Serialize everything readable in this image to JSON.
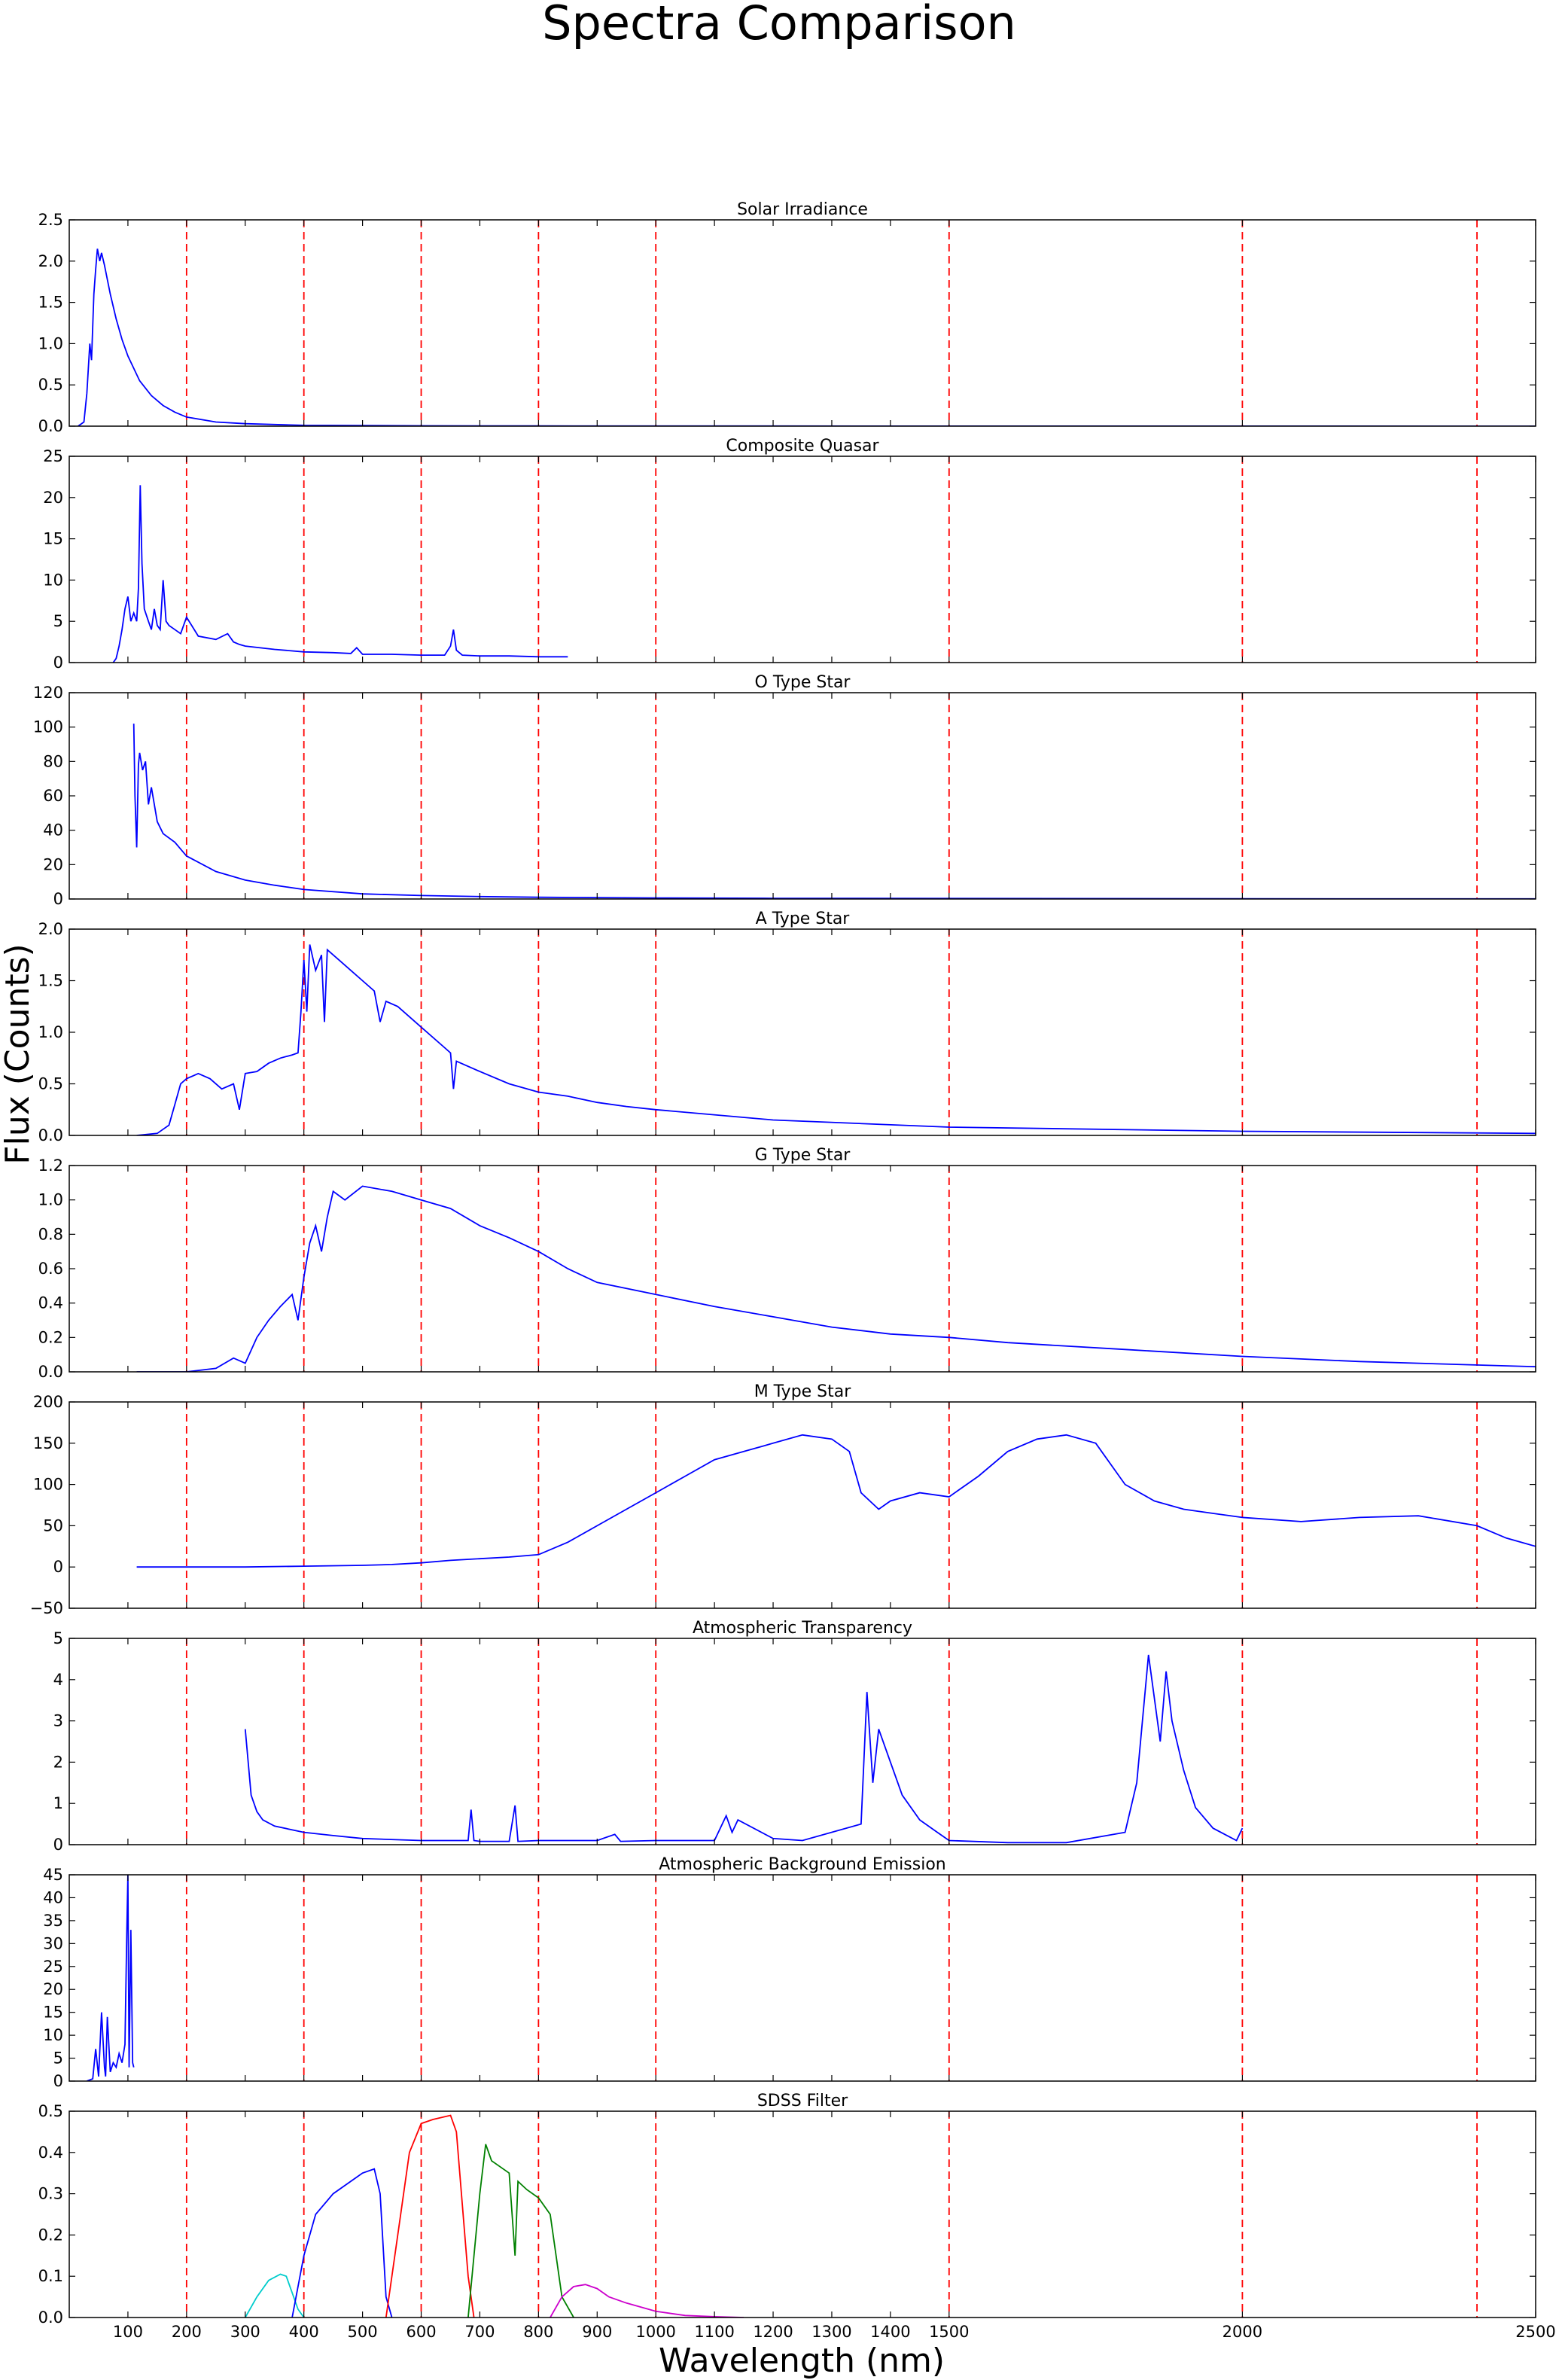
{
  "chart_data": {
    "type": "line",
    "title": "Spectra Comparison",
    "xlabel": "Wavelength (nm)",
    "ylabel": "Flux (Counts)",
    "xlim": [
      0,
      2500
    ],
    "x_tick_labels": [
      "100",
      "200",
      "300",
      "400",
      "500",
      "600",
      "700",
      "800",
      "900",
      "1000",
      "1100",
      "1200",
      "1300",
      "1400",
      "1500",
      "2000",
      "2500"
    ],
    "x_tick_values": [
      100,
      200,
      300,
      400,
      500,
      600,
      700,
      800,
      900,
      1000,
      1100,
      1200,
      1300,
      1400,
      1500,
      2000,
      2500
    ],
    "reference_lines": {
      "style": "dashed",
      "color": "#ff0000",
      "x": [
        200,
        400,
        600,
        800,
        1000,
        1500,
        2000,
        2400
      ]
    },
    "colors": {
      "spectrum": "#0000ff",
      "reference": "#ff0000",
      "filter_u": "#00cccc",
      "filter_g": "#0000ff",
      "filter_r": "#ff0000",
      "filter_i": "#008000",
      "filter_z": "#cc00cc"
    },
    "panels": [
      {
        "title": "Solar Irradiance",
        "ylim": [
          0,
          2.5
        ],
        "yticks": [
          "0.0",
          "0.5",
          "1.0",
          "1.5",
          "2.0",
          "2.5"
        ],
        "series": [
          {
            "color": "#0000ff",
            "x": [
              15,
              25,
              30,
              35,
              38,
              42,
              45,
              48,
              52,
              55,
              60,
              70,
              80,
              90,
              100,
              120,
              140,
              160,
              180,
              200,
              250,
              300,
              400,
              600,
              800,
              1000,
              2500
            ],
            "y": [
              0.0,
              0.05,
              0.4,
              1.0,
              0.8,
              1.6,
              1.9,
              2.15,
              2.0,
              2.1,
              1.95,
              1.6,
              1.3,
              1.05,
              0.85,
              0.55,
              0.37,
              0.25,
              0.17,
              0.11,
              0.05,
              0.03,
              0.01,
              0.005,
              0.003,
              0.002,
              0.0
            ]
          }
        ]
      },
      {
        "title": "Composite Quasar",
        "ylim": [
          0,
          25
        ],
        "yticks": [
          "0",
          "5",
          "10",
          "15",
          "20",
          "25"
        ],
        "series": [
          {
            "color": "#0000ff",
            "x": [
              75,
              80,
              85,
              90,
              95,
              100,
              105,
              110,
              115,
              118,
              121,
              124,
              128,
              135,
              140,
              145,
              150,
              155,
              160,
              165,
              170,
              180,
              190,
              200,
              220,
              250,
              270,
              280,
              290,
              300,
              350,
              400,
              450,
              480,
              490,
              500,
              550,
              600,
              640,
              650,
              655,
              660,
              670,
              700,
              750,
              800,
              850
            ],
            "y": [
              0.0,
              0.5,
              2.0,
              4.0,
              6.5,
              8.0,
              5.0,
              6.0,
              5.0,
              9.0,
              21.5,
              12.0,
              6.5,
              5.0,
              4.0,
              6.5,
              4.5,
              4.0,
              10.0,
              5.0,
              4.5,
              4.0,
              3.5,
              5.5,
              3.2,
              2.8,
              3.5,
              2.5,
              2.2,
              2.0,
              1.6,
              1.3,
              1.2,
              1.1,
              1.8,
              1.0,
              1.0,
              0.9,
              0.9,
              2.0,
              4.0,
              1.5,
              0.9,
              0.8,
              0.8,
              0.7,
              0.7
            ]
          }
        ]
      },
      {
        "title": "O Type Star",
        "ylim": [
          0,
          120
        ],
        "yticks": [
          "0",
          "20",
          "40",
          "60",
          "80",
          "100",
          "120"
        ],
        "series": [
          {
            "color": "#0000ff",
            "x": [
              110,
              112,
              115,
              118,
              120,
              125,
              130,
              135,
              140,
              150,
              160,
              180,
              200,
              250,
              300,
              350,
              400,
              500,
              600,
              700,
              800,
              1000,
              1200,
              1500,
              2000,
              2500
            ],
            "y": [
              102,
              60,
              30,
              78,
              85,
              75,
              80,
              55,
              65,
              45,
              38,
              33,
              25,
              16,
              11,
              8,
              5.5,
              3.0,
              2.0,
              1.4,
              1.0,
              0.6,
              0.4,
              0.3,
              0.15,
              0.1
            ]
          }
        ]
      },
      {
        "title": "A Type Star",
        "ylim": [
          0,
          2.0
        ],
        "yticks": [
          "0.0",
          "0.5",
          "1.0",
          "1.5",
          "2.0"
        ],
        "series": [
          {
            "color": "#0000ff",
            "x": [
              115,
              150,
              170,
              180,
              190,
              200,
              220,
              240,
              260,
              280,
              290,
              300,
              320,
              340,
              360,
              380,
              390,
              395,
              400,
              405,
              410,
              420,
              430,
              435,
              440,
              460,
              480,
              500,
              520,
              530,
              540,
              560,
              600,
              640,
              650,
              655,
              660,
              700,
              750,
              800,
              850,
              900,
              950,
              1000,
              1200,
              1500,
              2000,
              2500
            ],
            "y": [
              0.0,
              0.02,
              0.1,
              0.3,
              0.5,
              0.55,
              0.6,
              0.55,
              0.45,
              0.5,
              0.25,
              0.6,
              0.62,
              0.7,
              0.75,
              0.78,
              0.8,
              1.2,
              1.7,
              1.2,
              1.85,
              1.6,
              1.75,
              1.1,
              1.8,
              1.7,
              1.6,
              1.5,
              1.4,
              1.1,
              1.3,
              1.25,
              1.05,
              0.85,
              0.8,
              0.45,
              0.72,
              0.62,
              0.5,
              0.42,
              0.38,
              0.32,
              0.28,
              0.25,
              0.15,
              0.08,
              0.04,
              0.02
            ]
          }
        ]
      },
      {
        "title": "G Type Star",
        "ylim": [
          0,
          1.2
        ],
        "yticks": [
          "0.0",
          "0.2",
          "0.4",
          "0.6",
          "0.8",
          "1.0",
          "1.2"
        ],
        "series": [
          {
            "color": "#0000ff",
            "x": [
              115,
              200,
              250,
              280,
              300,
              320,
              340,
              360,
              380,
              390,
              400,
              410,
              420,
              430,
              440,
              450,
              470,
              500,
              550,
              600,
              650,
              700,
              750,
              800,
              850,
              900,
              1000,
              1100,
              1200,
              1300,
              1400,
              1500,
              1600,
              1800,
              2000,
              2200,
              2500
            ],
            "y": [
              0.0,
              0.0,
              0.02,
              0.08,
              0.05,
              0.2,
              0.3,
              0.38,
              0.45,
              0.3,
              0.55,
              0.75,
              0.85,
              0.7,
              0.9,
              1.05,
              1.0,
              1.08,
              1.05,
              1.0,
              0.95,
              0.85,
              0.78,
              0.7,
              0.6,
              0.52,
              0.45,
              0.38,
              0.32,
              0.26,
              0.22,
              0.2,
              0.17,
              0.13,
              0.09,
              0.06,
              0.03
            ]
          }
        ]
      },
      {
        "title": "M Type Star",
        "ylim": [
          -50,
          200
        ],
        "yticks": [
          "−50",
          "0",
          "50",
          "100",
          "150",
          "200"
        ],
        "series": [
          {
            "color": "#0000ff",
            "x": [
              115,
              300,
              400,
              500,
              550,
              600,
              650,
              700,
              750,
              800,
              850,
              900,
              950,
              1000,
              1050,
              1100,
              1150,
              1200,
              1250,
              1300,
              1330,
              1350,
              1380,
              1400,
              1450,
              1500,
              1550,
              1600,
              1650,
              1700,
              1750,
              1800,
              1850,
              1900,
              1950,
              2000,
              2100,
              2200,
              2300,
              2400,
              2450,
              2500
            ],
            "y": [
              0,
              0,
              1,
              2,
              3,
              5,
              8,
              10,
              12,
              15,
              30,
              50,
              70,
              90,
              110,
              130,
              140,
              150,
              160,
              155,
              140,
              90,
              70,
              80,
              90,
              85,
              110,
              140,
              155,
              160,
              150,
              100,
              80,
              70,
              65,
              60,
              55,
              60,
              62,
              50,
              35,
              25
            ]
          }
        ]
      },
      {
        "title": "Atmospheric Transparency",
        "ylim": [
          0,
          5
        ],
        "yticks": [
          "0",
          "1",
          "2",
          "3",
          "4",
          "5"
        ],
        "series": [
          {
            "color": "#0000ff",
            "x": [
              300,
              305,
              310,
              320,
              330,
              350,
              400,
              450,
              500,
              600,
              680,
              685,
              690,
              700,
              750,
              760,
              765,
              800,
              900,
              930,
              940,
              1000,
              1100,
              1120,
              1130,
              1140,
              1200,
              1250,
              1350,
              1360,
              1370,
              1380,
              1400,
              1420,
              1450,
              1480,
              1500,
              1600,
              1700,
              1800,
              1820,
              1840,
              1860,
              1870,
              1880,
              1900,
              1920,
              1950,
              1990,
              2000
            ],
            "y": [
              2.8,
              2.0,
              1.2,
              0.8,
              0.6,
              0.45,
              0.3,
              0.22,
              0.15,
              0.1,
              0.1,
              0.85,
              0.1,
              0.08,
              0.08,
              0.95,
              0.08,
              0.1,
              0.1,
              0.25,
              0.08,
              0.1,
              0.1,
              0.7,
              0.3,
              0.6,
              0.15,
              0.1,
              0.5,
              3.7,
              1.5,
              2.8,
              2.0,
              1.2,
              0.6,
              0.3,
              0.1,
              0.05,
              0.05,
              0.3,
              1.5,
              4.6,
              2.5,
              4.2,
              3.0,
              1.8,
              0.9,
              0.4,
              0.1,
              0.4
            ]
          }
        ]
      },
      {
        "title": "Atmospheric Background Emission",
        "ylim": [
          0,
          45
        ],
        "yticks": [
          "0",
          "5",
          "10",
          "15",
          "20",
          "25",
          "30",
          "35",
          "40",
          "45"
        ],
        "series": [
          {
            "color": "#0000ff",
            "x": [
              30,
              40,
              45,
              50,
              55,
              60,
              62,
              65,
              70,
              75,
              80,
              85,
              90,
              95,
              98,
              100,
              102,
              105,
              108,
              110
            ],
            "y": [
              0,
              0.5,
              7,
              1,
              15,
              3,
              1,
              14,
              2,
              4,
              3,
              6,
              4,
              8,
              32,
              45,
              3,
              33,
              4,
              3
            ]
          }
        ]
      },
      {
        "title": "SDSS Filter",
        "ylim": [
          0,
          0.5
        ],
        "yticks": [
          "0.0",
          "0.1",
          "0.2",
          "0.3",
          "0.4",
          "0.5"
        ],
        "series": [
          {
            "color": "#00cccc",
            "x": [
              300,
              320,
              340,
              360,
              370,
              380,
              390,
              400
            ],
            "y": [
              0.0,
              0.05,
              0.09,
              0.105,
              0.1,
              0.06,
              0.02,
              0.0
            ]
          },
          {
            "color": "#0000ff",
            "x": [
              380,
              400,
              420,
              450,
              500,
              520,
              530,
              540,
              550
            ],
            "y": [
              0.0,
              0.15,
              0.25,
              0.3,
              0.35,
              0.36,
              0.3,
              0.05,
              0.0
            ]
          },
          {
            "color": "#ff0000",
            "x": [
              540,
              560,
              580,
              600,
              620,
              650,
              660,
              680,
              690
            ],
            "y": [
              0.0,
              0.2,
              0.4,
              0.47,
              0.48,
              0.49,
              0.45,
              0.1,
              0.0
            ]
          },
          {
            "color": "#008000",
            "x": [
              680,
              700,
              710,
              720,
              750,
              760,
              765,
              780,
              800,
              820,
              840,
              860
            ],
            "y": [
              0.0,
              0.3,
              0.42,
              0.38,
              0.35,
              0.15,
              0.33,
              0.31,
              0.29,
              0.25,
              0.05,
              0.0
            ]
          },
          {
            "color": "#cc00cc",
            "x": [
              820,
              840,
              860,
              880,
              900,
              920,
              950,
              1000,
              1050,
              1100,
              1150
            ],
            "y": [
              0.0,
              0.05,
              0.075,
              0.08,
              0.07,
              0.05,
              0.035,
              0.015,
              0.005,
              0.002,
              0.0
            ]
          }
        ]
      }
    ]
  }
}
